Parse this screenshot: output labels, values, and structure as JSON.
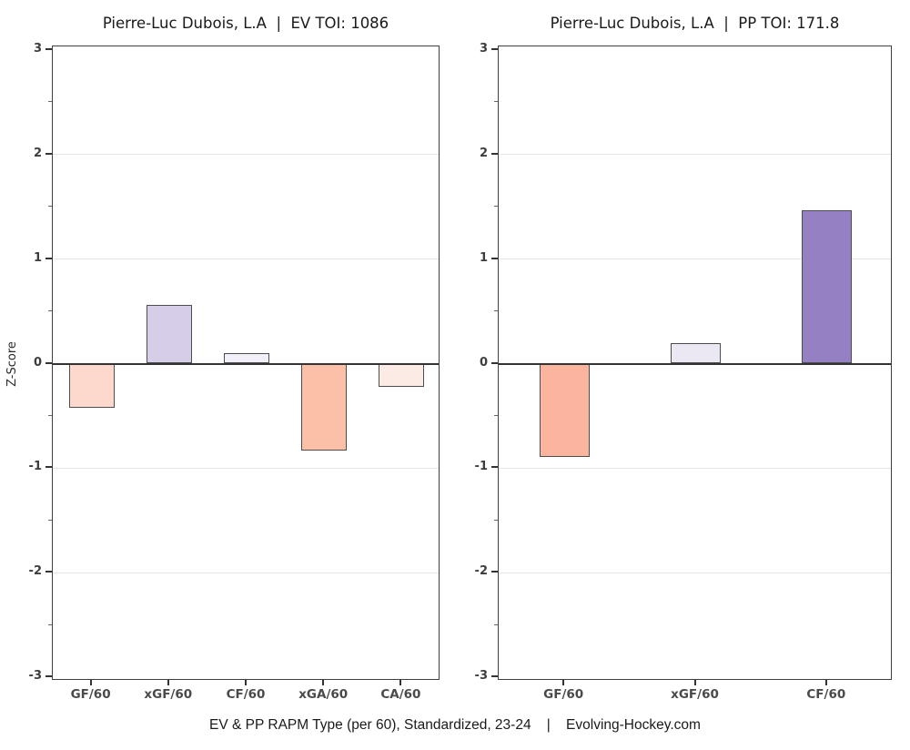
{
  "figure": {
    "background": "#ffffff",
    "caption": "EV & PP RAPM Type (per 60), Standardized, 23-24    |    Evolving-Hockey.com"
  },
  "style": {
    "bar_border": "#4d4d4d",
    "grid_color": "#e5e5e5",
    "zero_line_color": "#333333",
    "axis_border_color": "#3f3f3f",
    "title_color": "#1a1a1a",
    "tick_label_color": "#3d3d3d"
  },
  "chart_data": [
    {
      "type": "bar",
      "title": "Pierre-Luc Dubois, L.A  |  EV TOI: 1086",
      "categories": [
        "GF/60",
        "xGF/60",
        "CF/60",
        "xGA/60",
        "CA/60"
      ],
      "values": [
        -0.42,
        0.56,
        0.1,
        -0.83,
        -0.22
      ],
      "bar_colors": [
        "#fdd9cd",
        "#d6cde8",
        "#f2eff8",
        "#fcc0a9",
        "#fcebe5"
      ],
      "ylabel": "Z-Score",
      "xlabel": "",
      "ylim": [
        -3,
        3
      ],
      "yticks": [
        3,
        2,
        1,
        0,
        -1,
        -2,
        -3
      ],
      "grid": "major horizontal",
      "legend": "none"
    },
    {
      "type": "bar",
      "title": "Pierre-Luc Dubois, L.A  |  PP TOI: 171.8",
      "categories": [
        "GF/60",
        "xGF/60",
        "CF/60"
      ],
      "values": [
        -0.89,
        0.2,
        1.47
      ],
      "bar_colors": [
        "#fbb49d",
        "#ebe8f4",
        "#9580c4"
      ],
      "ylabel": "",
      "xlabel": "",
      "ylim": [
        -3,
        3
      ],
      "yticks": [
        3,
        2,
        1,
        0,
        -1,
        -2,
        -3
      ],
      "grid": "major horizontal",
      "legend": "none"
    }
  ]
}
